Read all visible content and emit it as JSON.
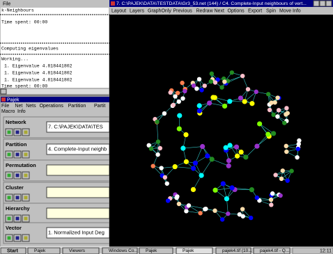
{
  "log": {
    "menu": "File",
    "lines": [
      "k-Neighbours",
      "Time spent:  00:00",
      "Computing eigenvalues",
      "Working...",
      "1. Eigenvalue          4.818441802",
      "1. Eigenvalue          4.818441802",
      "1. Eigenvalue          4.818441802",
      "Time spent:  00:00"
    ]
  },
  "pajek": {
    "title": "Pajek",
    "menu1": [
      "File",
      "Net",
      "Nets",
      "Operations",
      "Partition",
      "Partit"
    ],
    "menu2": [
      "Macro",
      "Info"
    ],
    "sections": [
      {
        "label": "Network",
        "value": "7. C:\\PAJEK\\DATA\\TES"
      },
      {
        "label": "Partition",
        "value": "4. Complete-Input neighb"
      },
      {
        "label": "Permutation"
      },
      {
        "label": "Cluster"
      },
      {
        "label": "Hierarchy"
      },
      {
        "label": "Vector",
        "value": "1. Normalized Input Deg"
      }
    ]
  },
  "graph": {
    "title": "7. C:\\PAJEK\\DATA\\TESTDATA\\Gr3_53.net (144) / C4. Complete-Input neighbours of vert...",
    "menu": [
      "Layout",
      "Layers",
      "GraphOnly",
      "Previous",
      "Redraw",
      "Next",
      "Options",
      "Export",
      "Spin",
      "Move",
      "Info"
    ]
  },
  "taskbar": {
    "start": "Start",
    "items": [
      "Pajek",
      "Viewers",
      "Windows Co...",
      "Pajek",
      "Pajek",
      "pajek4.tif (10...",
      "pajek4.tif - Q..."
    ],
    "clock": "12:11"
  }
}
